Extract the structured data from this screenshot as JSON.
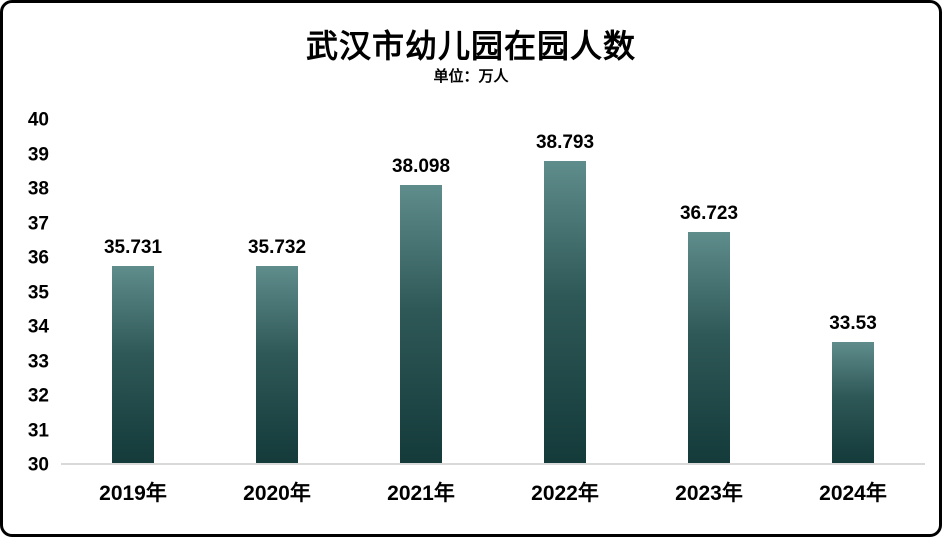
{
  "chart": {
    "title": "武汉市幼儿园在园人数",
    "subtitle": "单位：万人"
  },
  "chart_data": {
    "type": "bar",
    "title": "武汉市幼儿园在园人数",
    "subtitle": "单位：万人",
    "categories": [
      "2019年",
      "2020年",
      "2021年",
      "2022年",
      "2023年",
      "2024年"
    ],
    "values": [
      35.731,
      35.732,
      38.098,
      38.793,
      36.723,
      33.53
    ],
    "value_labels": [
      "35.731",
      "35.732",
      "38.098",
      "38.793",
      "36.723",
      "33.53"
    ],
    "xlabel": "",
    "ylabel": "",
    "ylim": [
      30,
      40
    ],
    "yticks": [
      30,
      31,
      32,
      33,
      34,
      35,
      36,
      37,
      38,
      39,
      40
    ],
    "grid": false,
    "legend": "none",
    "colors": {
      "bar_top": "#5f8d8c",
      "bar_bottom": "#143a3a",
      "baseline": "#d9d9d9",
      "text": "#000000",
      "background": "#ffffff",
      "border": "#000000"
    }
  }
}
